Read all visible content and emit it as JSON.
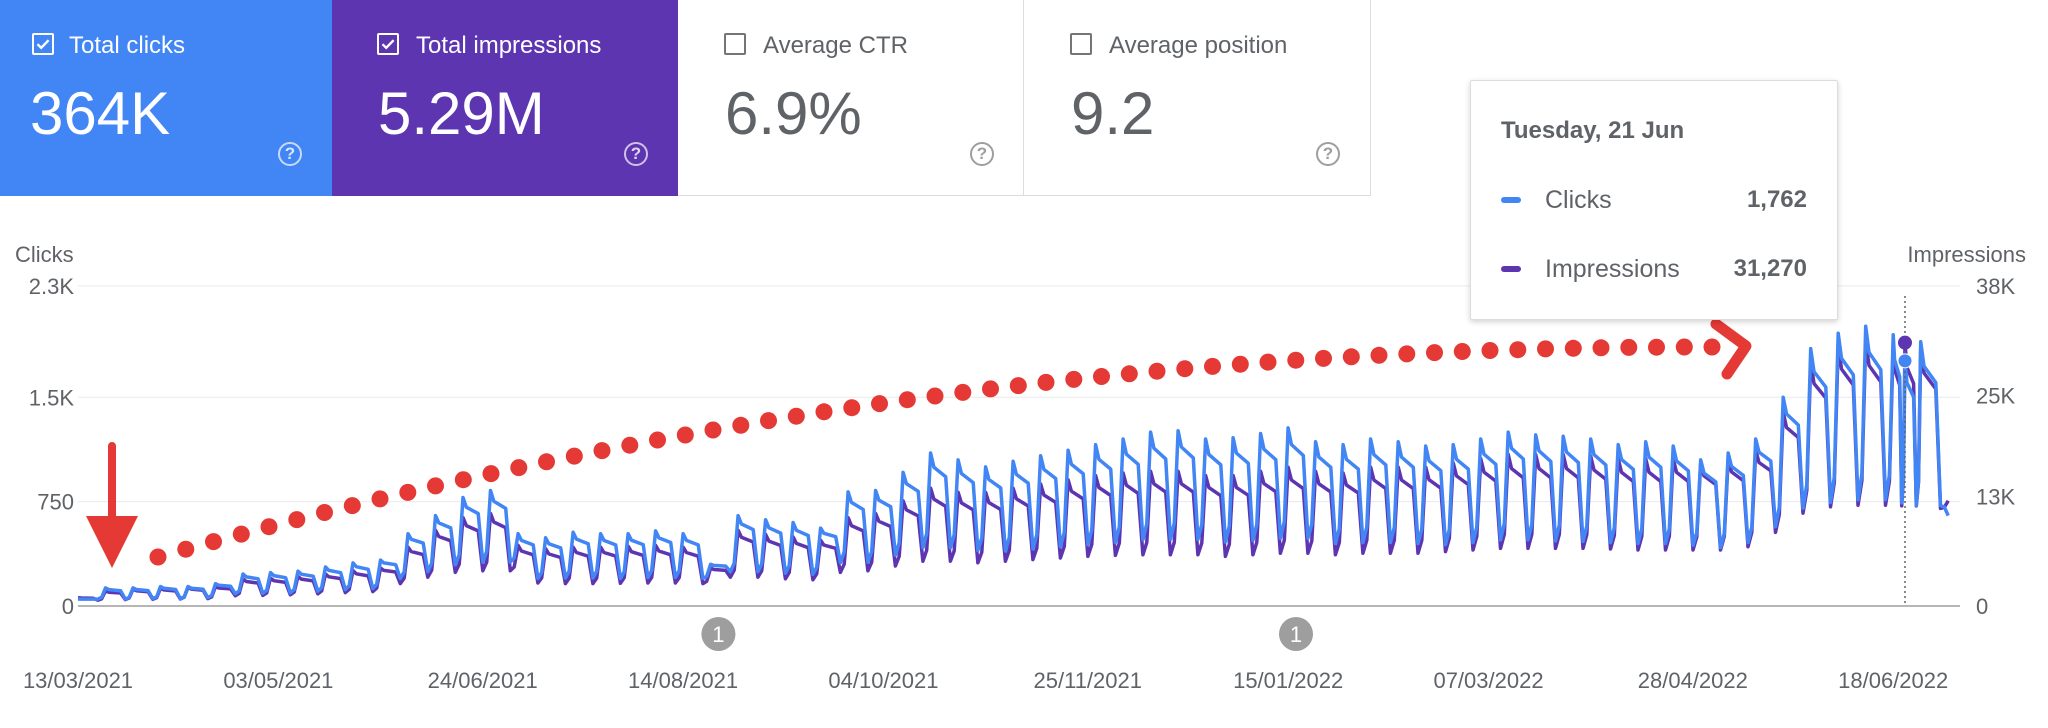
{
  "metrics": {
    "clicks": {
      "label": "Total clicks",
      "value": "364K",
      "checked": true,
      "color": "#4285f4"
    },
    "impressions": {
      "label": "Total impressions",
      "value": "5.29M",
      "checked": true,
      "color": "#5e35b1"
    },
    "ctr": {
      "label": "Average CTR",
      "value": "6.9%",
      "checked": false
    },
    "position": {
      "label": "Average position",
      "value": "9.2",
      "checked": false
    }
  },
  "tooltip": {
    "date": "Tuesday, 21 Jun",
    "rows": [
      {
        "name": "Clicks",
        "value": "1,762",
        "color": "#4285f4"
      },
      {
        "name": "Impressions",
        "value": "31,270",
        "color": "#5e35b1"
      }
    ]
  },
  "chart_data": {
    "type": "line",
    "ylabel_left": "Clicks",
    "ylabel_right": "Impressions",
    "y_left_ticks": [
      "0",
      "750",
      "1.5K",
      "2.3K"
    ],
    "y_left_values": [
      0,
      750,
      1500,
      2300
    ],
    "y_right_ticks": [
      "0",
      "13K",
      "25K",
      "38K"
    ],
    "y_right_values": [
      0,
      13000,
      25000,
      38000
    ],
    "ylim_left": [
      0,
      2300
    ],
    "ylim_right": [
      0,
      38000
    ],
    "x_ticks": [
      "13/03/2021",
      "03/05/2021",
      "24/06/2021",
      "14/08/2021",
      "04/10/2021",
      "25/11/2021",
      "15/01/2022",
      "07/03/2022",
      "28/04/2022",
      "18/06/2022"
    ],
    "x_range": [
      "2021-03-13",
      "2022-07-05"
    ],
    "annotations": [
      {
        "date": "2021-08-23",
        "label": "1"
      },
      {
        "date": "2022-01-17",
        "label": "1"
      }
    ],
    "hover_date": "2022-06-21",
    "grid": true,
    "series": [
      {
        "name": "Clicks",
        "color": "#4285f4",
        "points": [
          [
            "2021-03-13",
            50
          ],
          [
            "2021-03-20",
            130
          ],
          [
            "2021-03-27",
            130
          ],
          [
            "2021-04-03",
            140
          ],
          [
            "2021-04-10",
            140
          ],
          [
            "2021-04-17",
            160
          ],
          [
            "2021-04-24",
            230
          ],
          [
            "2021-05-01",
            240
          ],
          [
            "2021-05-08",
            250
          ],
          [
            "2021-05-15",
            280
          ],
          [
            "2021-05-22",
            310
          ],
          [
            "2021-05-29",
            330
          ],
          [
            "2021-06-05",
            520
          ],
          [
            "2021-06-12",
            650
          ],
          [
            "2021-06-19",
            780
          ],
          [
            "2021-06-26",
            830
          ],
          [
            "2021-07-03",
            520
          ],
          [
            "2021-07-10",
            490
          ],
          [
            "2021-07-17",
            530
          ],
          [
            "2021-07-24",
            520
          ],
          [
            "2021-07-31",
            520
          ],
          [
            "2021-08-07",
            540
          ],
          [
            "2021-08-14",
            520
          ],
          [
            "2021-08-21",
            300
          ],
          [
            "2021-08-28",
            650
          ],
          [
            "2021-09-04",
            620
          ],
          [
            "2021-09-11",
            600
          ],
          [
            "2021-09-18",
            560
          ],
          [
            "2021-09-25",
            820
          ],
          [
            "2021-10-02",
            830
          ],
          [
            "2021-10-09",
            960
          ],
          [
            "2021-10-16",
            1100
          ],
          [
            "2021-10-23",
            1050
          ],
          [
            "2021-10-30",
            1000
          ],
          [
            "2021-11-06",
            1040
          ],
          [
            "2021-11-13",
            1080
          ],
          [
            "2021-11-20",
            1120
          ],
          [
            "2021-11-27",
            1160
          ],
          [
            "2021-12-04",
            1200
          ],
          [
            "2021-12-11",
            1250
          ],
          [
            "2021-12-18",
            1260
          ],
          [
            "2021-12-25",
            1200
          ],
          [
            "2022-01-01",
            1210
          ],
          [
            "2022-01-08",
            1240
          ],
          [
            "2022-01-15",
            1280
          ],
          [
            "2022-01-22",
            1180
          ],
          [
            "2022-01-29",
            1160
          ],
          [
            "2022-02-05",
            1200
          ],
          [
            "2022-02-12",
            1180
          ],
          [
            "2022-02-19",
            1150
          ],
          [
            "2022-02-26",
            1160
          ],
          [
            "2022-03-05",
            1200
          ],
          [
            "2022-03-12",
            1250
          ],
          [
            "2022-03-19",
            1230
          ],
          [
            "2022-03-26",
            1220
          ],
          [
            "2022-04-02",
            1200
          ],
          [
            "2022-04-09",
            1160
          ],
          [
            "2022-04-16",
            1180
          ],
          [
            "2022-04-23",
            1150
          ],
          [
            "2022-04-30",
            1050
          ],
          [
            "2022-05-07",
            1100
          ],
          [
            "2022-05-14",
            1200
          ],
          [
            "2022-05-21",
            1500
          ],
          [
            "2022-05-28",
            1850
          ],
          [
            "2022-06-04",
            1960
          ],
          [
            "2022-06-11",
            2010
          ],
          [
            "2022-06-18",
            1950
          ],
          [
            "2022-06-21",
            1762
          ],
          [
            "2022-06-25",
            1900
          ],
          [
            "2022-07-02",
            650
          ]
        ]
      },
      {
        "name": "Impressions",
        "color": "#5e35b1",
        "points": [
          [
            "2021-03-13",
            1000
          ],
          [
            "2021-03-20",
            1800
          ],
          [
            "2021-03-27",
            2000
          ],
          [
            "2021-04-03",
            2100
          ],
          [
            "2021-04-10",
            2200
          ],
          [
            "2021-04-17",
            2300
          ],
          [
            "2021-04-24",
            3200
          ],
          [
            "2021-05-01",
            3300
          ],
          [
            "2021-05-08",
            3500
          ],
          [
            "2021-05-15",
            3800
          ],
          [
            "2021-05-22",
            4200
          ],
          [
            "2021-05-29",
            4500
          ],
          [
            "2021-06-05",
            7000
          ],
          [
            "2021-06-12",
            9000
          ],
          [
            "2021-06-19",
            10500
          ],
          [
            "2021-06-26",
            11000
          ],
          [
            "2021-07-03",
            7200
          ],
          [
            "2021-07-10",
            6800
          ],
          [
            "2021-07-17",
            7000
          ],
          [
            "2021-07-24",
            7000
          ],
          [
            "2021-07-31",
            7100
          ],
          [
            "2021-08-07",
            7200
          ],
          [
            "2021-08-14",
            7000
          ],
          [
            "2021-08-21",
            4500
          ],
          [
            "2021-08-28",
            9000
          ],
          [
            "2021-09-04",
            8500
          ],
          [
            "2021-09-11",
            8200
          ],
          [
            "2021-09-18",
            7800
          ],
          [
            "2021-09-25",
            10500
          ],
          [
            "2021-10-02",
            11000
          ],
          [
            "2021-10-09",
            12500
          ],
          [
            "2021-10-16",
            14000
          ],
          [
            "2021-10-23",
            13500
          ],
          [
            "2021-10-30",
            13500
          ],
          [
            "2021-11-06",
            14000
          ],
          [
            "2021-11-13",
            14500
          ],
          [
            "2021-11-20",
            15000
          ],
          [
            "2021-11-27",
            15500
          ],
          [
            "2021-12-04",
            15800
          ],
          [
            "2021-12-11",
            16000
          ],
          [
            "2021-12-18",
            16000
          ],
          [
            "2021-12-25",
            15500
          ],
          [
            "2022-01-01",
            15500
          ],
          [
            "2022-01-08",
            16000
          ],
          [
            "2022-01-15",
            16500
          ],
          [
            "2022-01-22",
            16000
          ],
          [
            "2022-01-29",
            15800
          ],
          [
            "2022-02-05",
            16500
          ],
          [
            "2022-02-12",
            16500
          ],
          [
            "2022-02-19",
            16500
          ],
          [
            "2022-02-26",
            17000
          ],
          [
            "2022-03-05",
            17500
          ],
          [
            "2022-03-12",
            18000
          ],
          [
            "2022-03-19",
            18000
          ],
          [
            "2022-03-26",
            18000
          ],
          [
            "2022-04-02",
            17800
          ],
          [
            "2022-04-09",
            17500
          ],
          [
            "2022-04-16",
            17500
          ],
          [
            "2022-04-23",
            17500
          ],
          [
            "2022-04-30",
            17000
          ],
          [
            "2022-05-07",
            17500
          ],
          [
            "2022-05-14",
            18500
          ],
          [
            "2022-05-21",
            23000
          ],
          [
            "2022-05-28",
            29000
          ],
          [
            "2022-06-04",
            31000
          ],
          [
            "2022-06-11",
            31500
          ],
          [
            "2022-06-18",
            31000
          ],
          [
            "2022-06-21",
            31270
          ],
          [
            "2022-06-25",
            30500
          ],
          [
            "2022-07-02",
            12500
          ]
        ]
      }
    ]
  }
}
